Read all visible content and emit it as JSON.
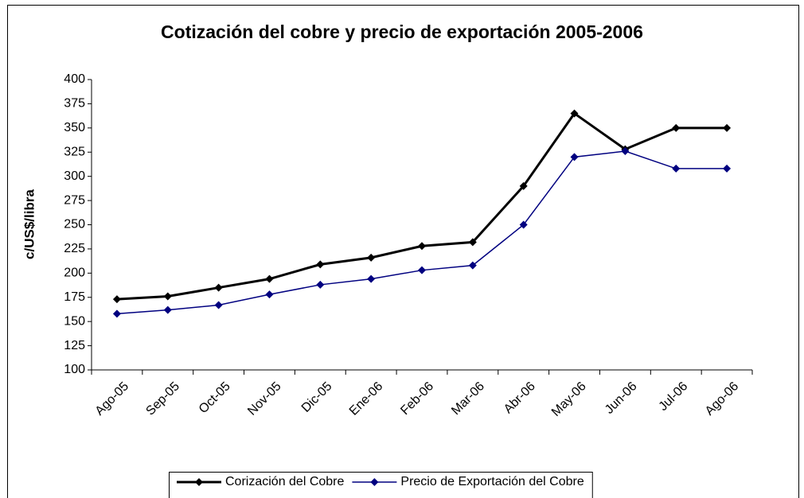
{
  "chart_data": {
    "type": "line",
    "title": "Cotización del cobre y precio de exportación 2005-2006",
    "y_label": "c/US$/libra",
    "categories": [
      "Ago-05",
      "Sep-05",
      "Oct-05",
      "Nov-05",
      "Dic-05",
      "Ene-06",
      "Feb-06",
      "Mar-06",
      "Abr-06",
      "May-06",
      "Jun-06",
      "Jul-06",
      "Ago-06"
    ],
    "series": [
      {
        "name": "Corización del Cobre",
        "color": "#000000",
        "marker": "diamond",
        "values": [
          173,
          176,
          185,
          194,
          209,
          216,
          228,
          232,
          290,
          365,
          328,
          350,
          350
        ]
      },
      {
        "name": "Precio de Exportación del Cobre",
        "color": "#000080",
        "marker": "diamond",
        "values": [
          158,
          162,
          167,
          178,
          188,
          194,
          203,
          208,
          250,
          320,
          326,
          308,
          308
        ]
      }
    ],
    "ylim": [
      100,
      400
    ],
    "yticks": [
      100,
      125,
      150,
      175,
      200,
      225,
      250,
      275,
      300,
      325,
      350,
      375,
      400
    ],
    "grid": false,
    "legend": "bottom"
  }
}
